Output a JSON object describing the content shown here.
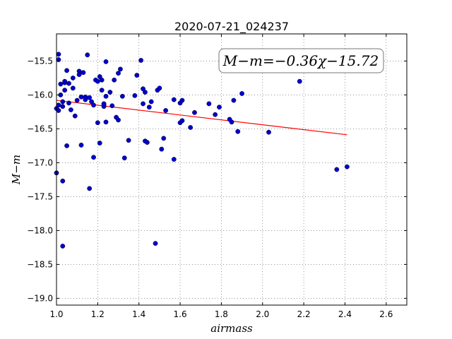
{
  "chart_data": {
    "type": "scatter",
    "title": "2020-07-21_024237",
    "xlabel": "airmass",
    "ylabel": "M−m",
    "xlim": [
      1.0,
      2.7
    ],
    "ylim": [
      -19.1,
      -15.1
    ],
    "x_ticks": [
      1.0,
      1.2,
      1.4,
      1.6,
      1.8,
      2.0,
      2.2,
      2.4,
      2.6
    ],
    "x_tick_labels": [
      "1.0",
      "1.2",
      "1.4",
      "1.6",
      "1.8",
      "2.0",
      "2.2",
      "2.4",
      "2.6"
    ],
    "y_ticks": [
      -15.5,
      -16.0,
      -16.5,
      -17.0,
      -17.5,
      -18.0,
      -18.5,
      -19.0
    ],
    "y_tick_labels": [
      "−15.5",
      "−16.0",
      "−16.5",
      "−17.0",
      "−17.5",
      "−18.0",
      "−18.5",
      "−19.0"
    ],
    "grid": true,
    "annotation": "M−m=−0.36χ−15.72",
    "fit_line": {
      "slope": -0.36,
      "intercept": -15.72,
      "x_range": [
        1.0,
        2.41
      ],
      "color": "#ff0000"
    },
    "marker_color": "#0000cc",
    "points": [
      [
        1.0,
        -16.2
      ],
      [
        1.0,
        -17.15
      ],
      [
        1.01,
        -16.23
      ],
      [
        1.01,
        -16.15
      ],
      [
        1.01,
        -15.4
      ],
      [
        1.01,
        -15.48
      ],
      [
        1.02,
        -15.84
      ],
      [
        1.02,
        -16.0
      ],
      [
        1.03,
        -16.1
      ],
      [
        1.03,
        -16.17
      ],
      [
        1.03,
        -17.27
      ],
      [
        1.03,
        -18.23
      ],
      [
        1.04,
        -15.82
      ],
      [
        1.04,
        -15.8
      ],
      [
        1.04,
        -15.93
      ],
      [
        1.05,
        -15.64
      ],
      [
        1.05,
        -16.75
      ],
      [
        1.06,
        -15.83
      ],
      [
        1.06,
        -16.12
      ],
      [
        1.07,
        -16.22
      ],
      [
        1.08,
        -15.9
      ],
      [
        1.08,
        -15.75
      ],
      [
        1.09,
        -16.31
      ],
      [
        1.1,
        -16.08
      ],
      [
        1.11,
        -15.65
      ],
      [
        1.11,
        -15.7
      ],
      [
        1.12,
        -16.03
      ],
      [
        1.12,
        -16.74
      ],
      [
        1.13,
        -15.67
      ],
      [
        1.14,
        -16.03
      ],
      [
        1.14,
        -16.07
      ],
      [
        1.15,
        -15.41
      ],
      [
        1.16,
        -16.04
      ],
      [
        1.16,
        -17.38
      ],
      [
        1.17,
        -16.1
      ],
      [
        1.18,
        -16.92
      ],
      [
        1.18,
        -16.15
      ],
      [
        1.19,
        -15.78
      ],
      [
        1.2,
        -15.8
      ],
      [
        1.2,
        -16.41
      ],
      [
        1.21,
        -15.73
      ],
      [
        1.21,
        -16.71
      ],
      [
        1.22,
        -15.93
      ],
      [
        1.22,
        -15.78
      ],
      [
        1.23,
        -16.14
      ],
      [
        1.23,
        -16.17
      ],
      [
        1.23,
        -16.13
      ],
      [
        1.24,
        -15.51
      ],
      [
        1.24,
        -16.4
      ],
      [
        1.24,
        -16.02
      ],
      [
        1.26,
        -15.96
      ],
      [
        1.27,
        -16.16
      ],
      [
        1.28,
        -15.78
      ],
      [
        1.29,
        -16.33
      ],
      [
        1.3,
        -15.68
      ],
      [
        1.3,
        -16.37
      ],
      [
        1.31,
        -15.62
      ],
      [
        1.32,
        -16.02
      ],
      [
        1.33,
        -16.93
      ],
      [
        1.35,
        -16.67
      ],
      [
        1.38,
        -16.01
      ],
      [
        1.39,
        -15.71
      ],
      [
        1.41,
        -15.49
      ],
      [
        1.42,
        -16.13
      ],
      [
        1.42,
        -15.91
      ],
      [
        1.43,
        -15.96
      ],
      [
        1.43,
        -16.68
      ],
      [
        1.44,
        -16.7
      ],
      [
        1.45,
        -16.18
      ],
      [
        1.46,
        -16.1
      ],
      [
        1.48,
        -18.19
      ],
      [
        1.49,
        -15.93
      ],
      [
        1.5,
        -15.9
      ],
      [
        1.51,
        -16.8
      ],
      [
        1.52,
        -16.64
      ],
      [
        1.53,
        -16.23
      ],
      [
        1.57,
        -16.07
      ],
      [
        1.57,
        -16.95
      ],
      [
        1.6,
        -16.12
      ],
      [
        1.61,
        -16.08
      ],
      [
        1.6,
        -16.41
      ],
      [
        1.61,
        -16.38
      ],
      [
        1.65,
        -16.48
      ],
      [
        1.67,
        -16.26
      ],
      [
        1.74,
        -16.13
      ],
      [
        1.77,
        -16.29
      ],
      [
        1.79,
        -16.18
      ],
      [
        1.84,
        -16.36
      ],
      [
        1.85,
        -16.4
      ],
      [
        1.86,
        -16.08
      ],
      [
        1.88,
        -16.54
      ],
      [
        1.9,
        -15.98
      ],
      [
        2.03,
        -16.55
      ],
      [
        2.18,
        -15.8
      ],
      [
        2.36,
        -17.1
      ],
      [
        2.41,
        -17.06
      ]
    ]
  }
}
